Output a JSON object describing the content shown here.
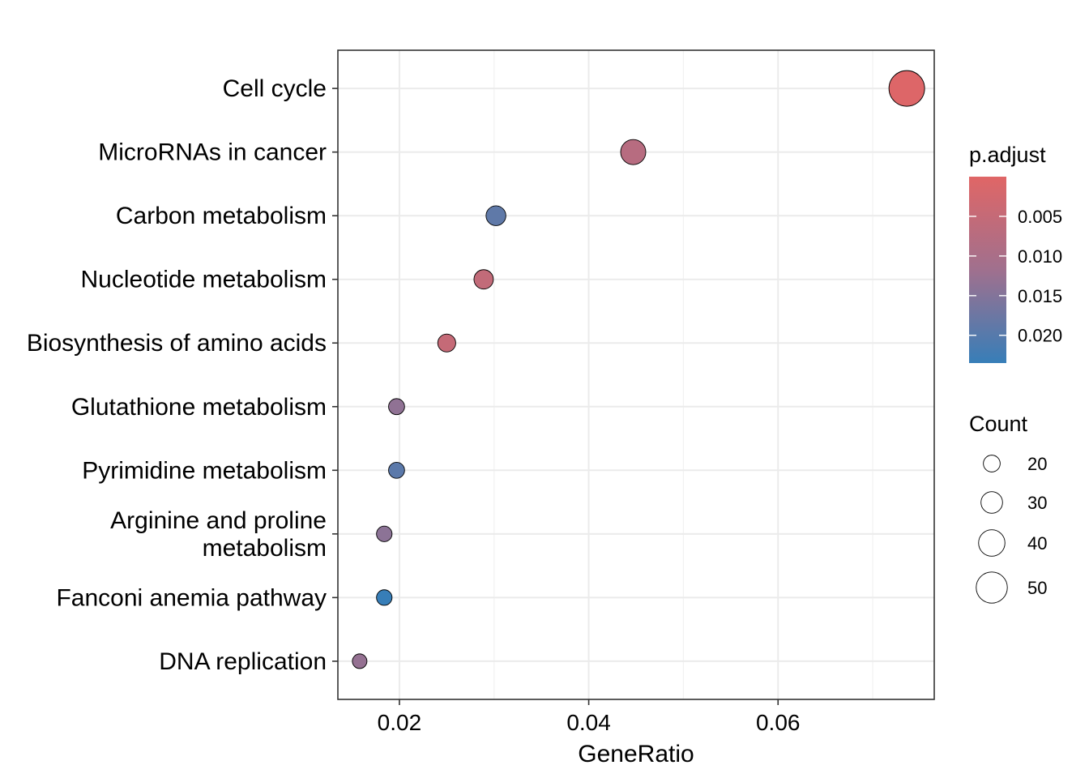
{
  "chart_data": {
    "type": "scatter",
    "title": "",
    "xlabel": "GeneRatio",
    "ylabel": "",
    "xlim": [
      0.0135,
      0.0765
    ],
    "x_ticks": [
      {
        "value": 0.02,
        "label": "0.02"
      },
      {
        "value": 0.04,
        "label": "0.04"
      },
      {
        "value": 0.06,
        "label": "0.06"
      }
    ],
    "x_minor_ticks": [
      0.03,
      0.05,
      0.07
    ],
    "grid": true,
    "points": [
      {
        "category": [
          "Cell cycle"
        ],
        "x": 0.0736,
        "count": 56,
        "p_adjust": 0.0005
      },
      {
        "category": [
          "MicroRNAs in cancer"
        ],
        "x": 0.0447,
        "count": 34,
        "p_adjust": 0.0075
      },
      {
        "category": [
          "Carbon metabolism"
        ],
        "x": 0.0302,
        "count": 23,
        "p_adjust": 0.019
      },
      {
        "category": [
          "Nucleotide metabolism"
        ],
        "x": 0.0289,
        "count": 22,
        "p_adjust": 0.0055
      },
      {
        "category": [
          "Biosynthesis of amino acids"
        ],
        "x": 0.025,
        "count": 19,
        "p_adjust": 0.005
      },
      {
        "category": [
          "Glutathione metabolism"
        ],
        "x": 0.0197,
        "count": 15,
        "p_adjust": 0.0135
      },
      {
        "category": [
          "Pyrimidine metabolism"
        ],
        "x": 0.0197,
        "count": 15,
        "p_adjust": 0.0195
      },
      {
        "category": [
          "Arginine and proline",
          "metabolism"
        ],
        "x": 0.0184,
        "count": 14,
        "p_adjust": 0.014
      },
      {
        "category": [
          "Fanconi anemia pathway"
        ],
        "x": 0.0184,
        "count": 14,
        "p_adjust": 0.0235
      },
      {
        "category": [
          "DNA replication"
        ],
        "x": 0.0158,
        "count": 12,
        "p_adjust": 0.013
      }
    ],
    "color_legend": {
      "title": "p.adjust",
      "range": [
        0.0,
        0.0235
      ],
      "low_color": "#E06666",
      "mid_color": "#A0708E",
      "high_color": "#377EB8",
      "ticks": [
        {
          "value": 0.005,
          "label": "0.005"
        },
        {
          "value": 0.01,
          "label": "0.010"
        },
        {
          "value": 0.015,
          "label": "0.015"
        },
        {
          "value": 0.02,
          "label": "0.020"
        }
      ]
    },
    "size_legend": {
      "title": "Count",
      "range": [
        12,
        56
      ],
      "entries": [
        {
          "value": 20,
          "label": "20"
        },
        {
          "value": 30,
          "label": "30"
        },
        {
          "value": 40,
          "label": "40"
        },
        {
          "value": 50,
          "label": "50"
        }
      ]
    },
    "legend_position": "right"
  }
}
